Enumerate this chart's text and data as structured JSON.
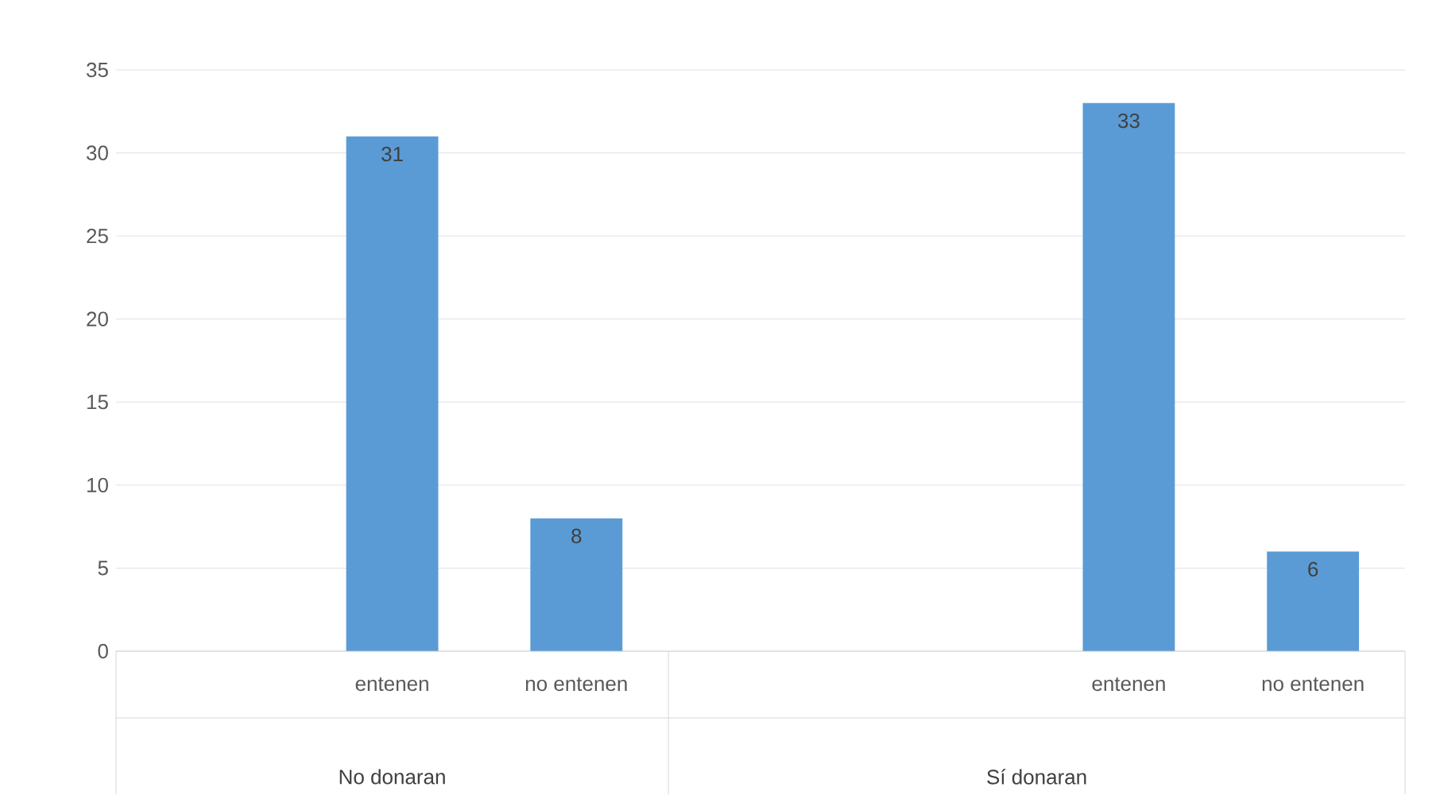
{
  "chart_data": {
    "type": "bar",
    "categories": [
      null,
      "entenen",
      "no entenen",
      null,
      null,
      "entenen",
      "no entenen"
    ],
    "values": [
      null,
      31,
      8,
      null,
      null,
      33,
      6
    ],
    "color": "#5b9bd5",
    "ylim": [
      0,
      35
    ],
    "yticks": [
      0,
      5,
      10,
      15,
      20,
      25,
      30,
      35
    ],
    "grid": "y",
    "data_labels": true,
    "annotations": [
      "No donaran",
      "Sí donaran"
    ]
  }
}
